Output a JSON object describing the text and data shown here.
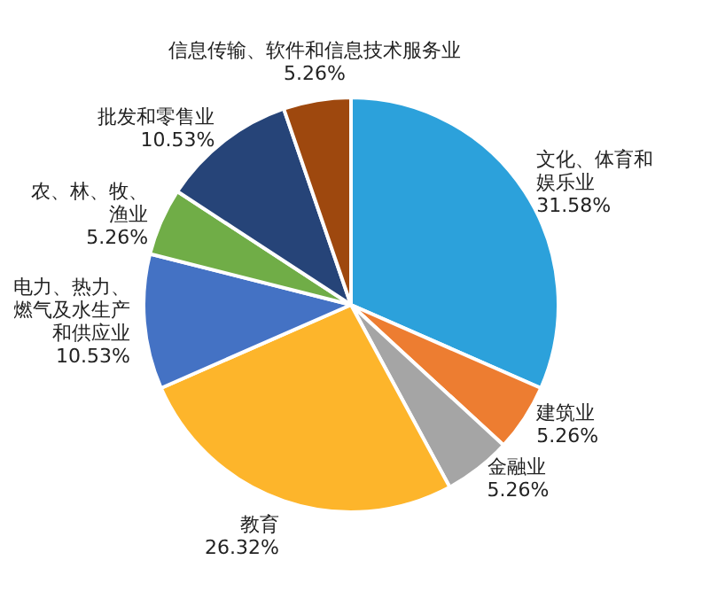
{
  "chart_data": {
    "type": "pie",
    "categories": [
      "文化、体育和娱乐业",
      "建筑业",
      "金融业",
      "教育",
      "电力、热力、燃气及水生产和供应业",
      "农、林、牧、渔业",
      "批发和零售业",
      "信息传输、软件和信息技术服务业"
    ],
    "values": [
      31.58,
      5.26,
      5.26,
      26.32,
      10.53,
      5.26,
      10.53,
      5.26
    ],
    "colors": [
      "#2ca1db",
      "#ed7d31",
      "#a5a5a5",
      "#fdb52b",
      "#4472c4",
      "#70ad47",
      "#264478",
      "#9e480e"
    ],
    "value_labels": [
      "31.58%",
      "5.26%",
      "5.26%",
      "26.32%",
      "10.53%",
      "5.26%",
      "10.53%",
      "5.26%"
    ]
  }
}
